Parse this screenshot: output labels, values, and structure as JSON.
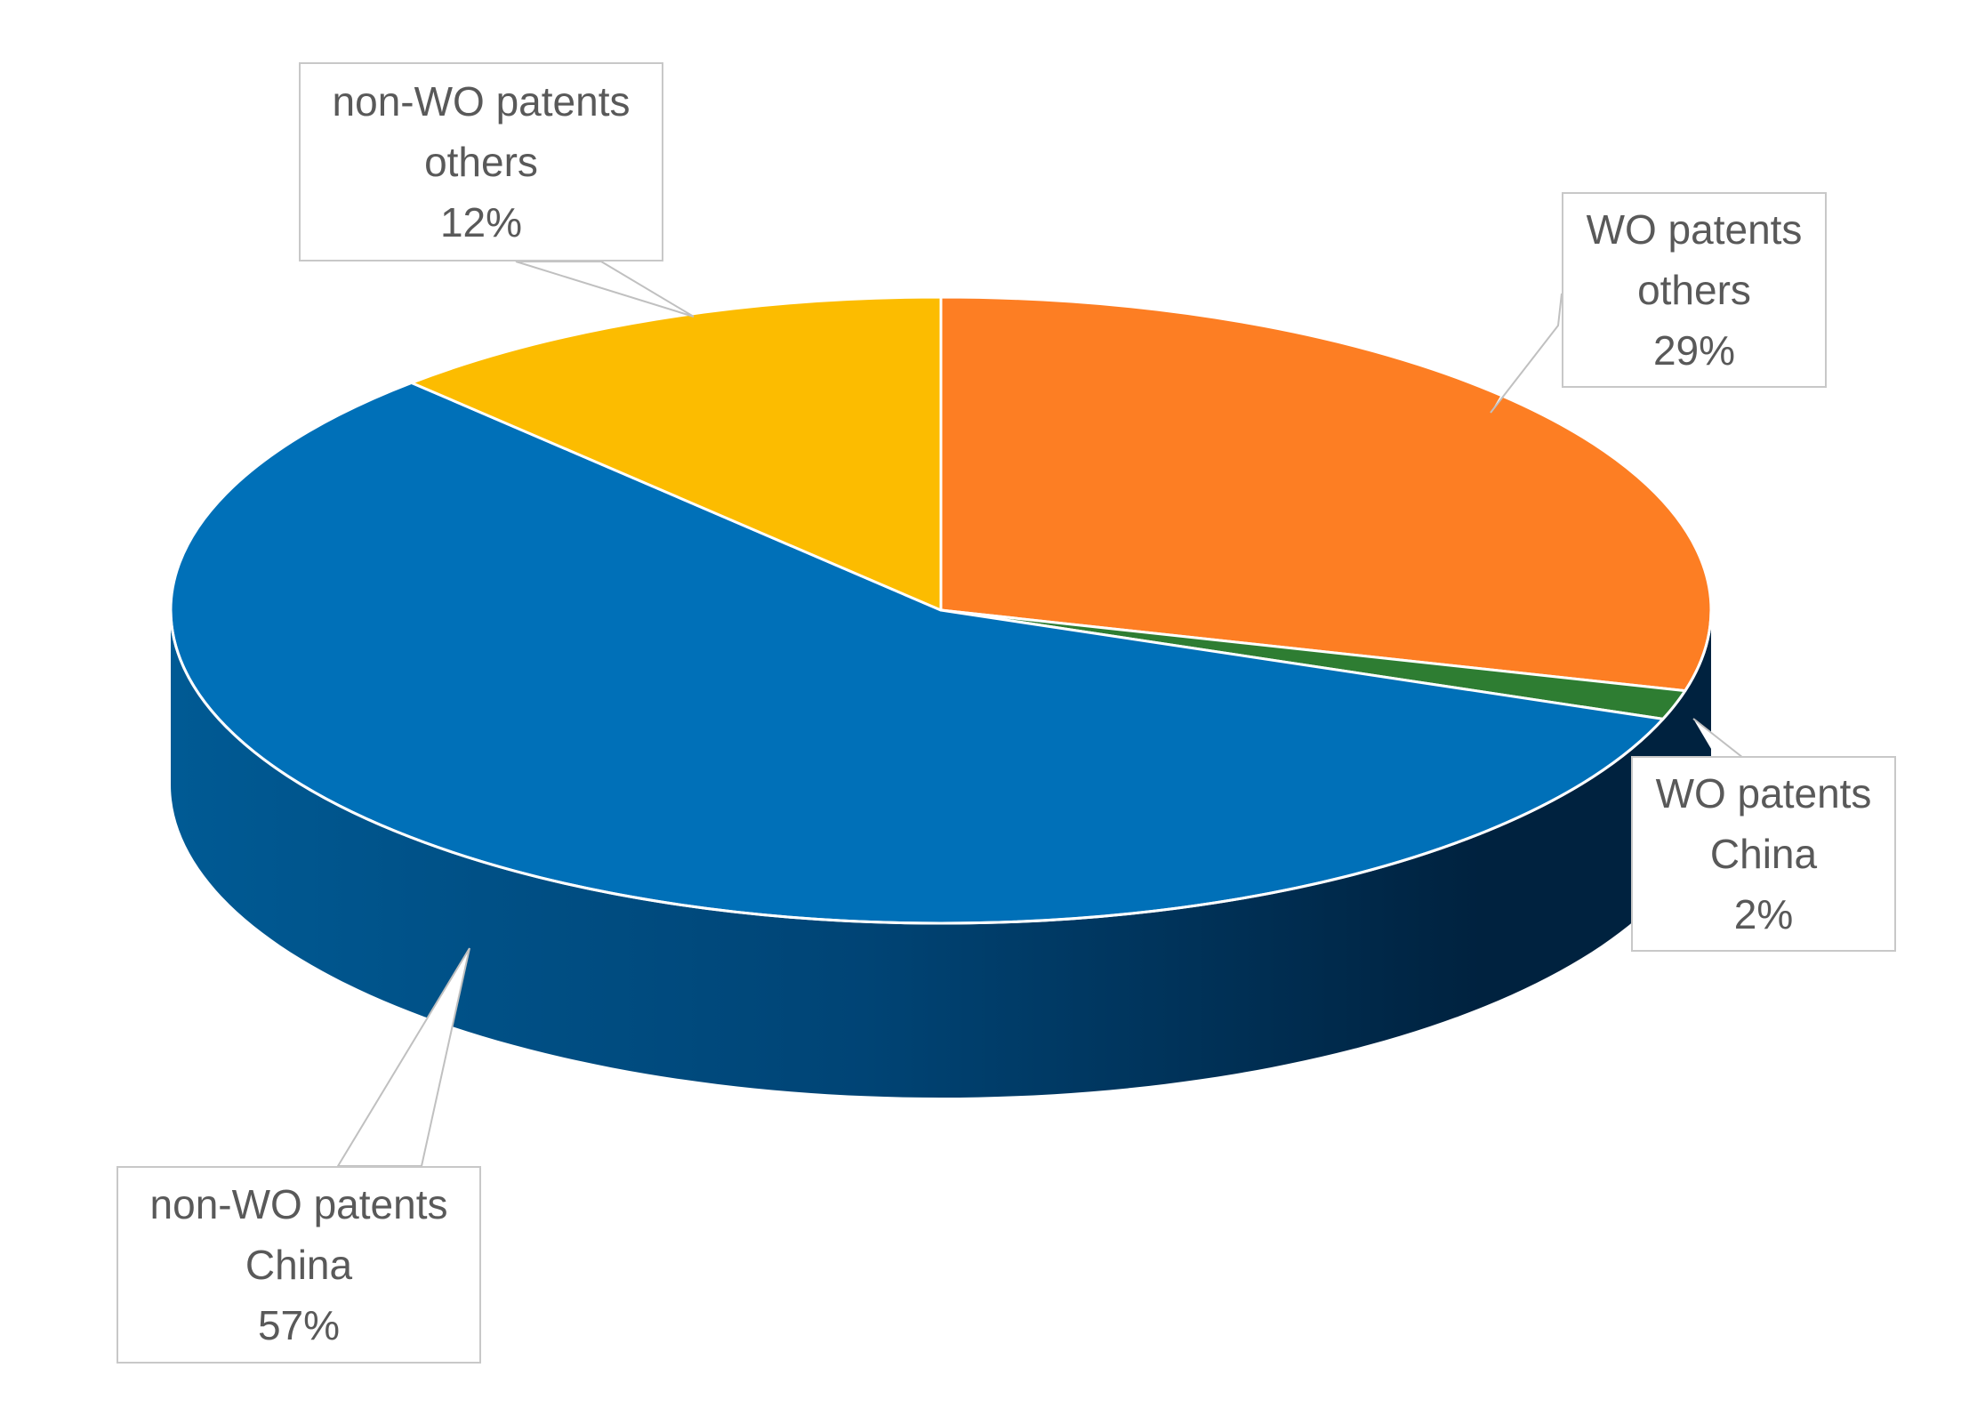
{
  "chart_data": {
    "type": "pie",
    "style": "3d",
    "title": "",
    "slices": [
      {
        "line1": "WO patents",
        "line2": "others",
        "pct_label": "29%",
        "value": 29,
        "color": "#fd7e23"
      },
      {
        "line1": "WO patents",
        "line2": "China",
        "pct_label": "2%",
        "value": 1.5,
        "color": "#2e7d32"
      },
      {
        "line1": "non-WO patents",
        "line2": "China",
        "pct_label": "57%",
        "value": 57,
        "color": "#0070b8"
      },
      {
        "line1": "non-WO patents",
        "line2": "others",
        "pct_label": "12%",
        "value": 12,
        "color": "#fcbc00"
      }
    ],
    "side_colors": {
      "light": "#005a94",
      "dark": "#00223f"
    },
    "leader_color": "#c0c0c0",
    "legend": "none"
  }
}
